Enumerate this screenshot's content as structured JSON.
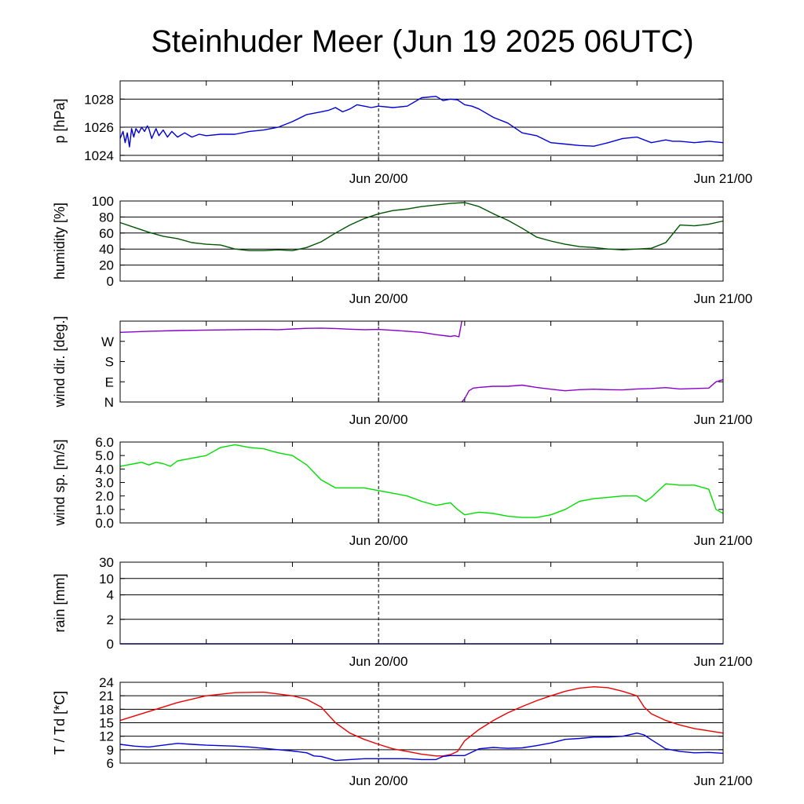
{
  "title": "Steinhuder Meer (Jun 19 2025 06UTC)",
  "chart_data": [
    {
      "type": "line",
      "ylabel": "p [hPa]",
      "ylim": [
        1023.6,
        1029.3
      ],
      "yticks": [
        1024,
        1026,
        1028
      ],
      "ytick_labels": [
        "1024",
        "1026",
        "1028"
      ],
      "grid": true,
      "xlim": [
        0,
        42
      ],
      "xtick_labels": [
        "Jun 20/00",
        "Jun 21/00"
      ],
      "series": [
        {
          "color": "#0000dd",
          "x": [
            0,
            0.2,
            0.35,
            0.5,
            0.65,
            0.8,
            0.95,
            1.1,
            1.3,
            1.5,
            1.7,
            1.9,
            2,
            2.2,
            2.5,
            2.7,
            3,
            3.3,
            3.6,
            4,
            4.5,
            5,
            5.5,
            6,
            7,
            8,
            9,
            10,
            11,
            12,
            13,
            13.5,
            14,
            14.5,
            15,
            15.5,
            16,
            16.5,
            17,
            17.5,
            18,
            19,
            20,
            21,
            22,
            22.5,
            23,
            23.5,
            24,
            24.5,
            25,
            26,
            27,
            28,
            29,
            30,
            31,
            32,
            33,
            34,
            35,
            36,
            37,
            38,
            38.5,
            39,
            40,
            41,
            42
          ],
          "y": [
            1025.2,
            1025.7,
            1024.9,
            1025.6,
            1024.6,
            1025.9,
            1025.3,
            1025.9,
            1025.6,
            1026.0,
            1025.7,
            1026.1,
            1025.9,
            1025.2,
            1025.9,
            1025.4,
            1025.8,
            1025.3,
            1025.7,
            1025.3,
            1025.6,
            1025.3,
            1025.5,
            1025.4,
            1025.5,
            1025.5,
            1025.7,
            1025.8,
            1026.0,
            1026.4,
            1026.9,
            1027.0,
            1027.1,
            1027.2,
            1027.4,
            1027.1,
            1027.3,
            1027.6,
            1027.5,
            1027.4,
            1027.5,
            1027.4,
            1027.5,
            1028.1,
            1028.2,
            1027.9,
            1028.0,
            1027.95,
            1027.6,
            1027.5,
            1027.3,
            1026.7,
            1026.3,
            1025.6,
            1025.4,
            1024.9,
            1024.8,
            1024.7,
            1024.65,
            1024.9,
            1025.2,
            1025.3,
            1024.9,
            1025.1,
            1025.0,
            1025.0,
            1024.9,
            1025.0,
            1024.9
          ]
        }
      ]
    },
    {
      "type": "line",
      "ylabel": "humidity [%]",
      "ylim": [
        0,
        100
      ],
      "yticks": [
        0,
        20,
        40,
        60,
        80,
        100
      ],
      "ytick_labels": [
        "0",
        "20",
        "40",
        "60",
        "80",
        "100"
      ],
      "grid": true,
      "xlim": [
        0,
        42
      ],
      "xtick_labels": [
        "Jun 20/00",
        "Jun 21/00"
      ],
      "series": [
        {
          "color": "#005500",
          "x": [
            0,
            1,
            2,
            3,
            4,
            5,
            6,
            7,
            8,
            9,
            10,
            11,
            12,
            13,
            14,
            15,
            16,
            17,
            18,
            19,
            20,
            21,
            22,
            23,
            24,
            25,
            26,
            27,
            28,
            29,
            30,
            31,
            32,
            33,
            34,
            35,
            36,
            37,
            38,
            39,
            40,
            41,
            42
          ],
          "y": [
            73,
            67,
            61,
            56,
            53,
            48,
            46,
            45,
            40,
            38,
            38,
            39,
            38,
            42,
            49,
            60,
            70,
            78,
            84,
            88,
            90,
            93,
            95,
            97,
            98,
            93,
            84,
            76,
            66,
            55,
            50,
            46,
            43,
            42,
            40,
            39,
            40,
            41,
            48,
            70,
            69,
            71,
            75
          ]
        }
      ]
    },
    {
      "type": "line",
      "ylabel": "wind dir. [deg.]",
      "ylim": [
        0,
        360
      ],
      "yticks": [
        0,
        90,
        180,
        270
      ],
      "ytick_labels": [
        "N",
        "E",
        "S",
        "W"
      ],
      "grid": false,
      "xlim": [
        0,
        42
      ],
      "xtick_labels": [
        "Jun 20/00",
        "Jun 21/00"
      ],
      "series": [
        {
          "color": "#8800cc",
          "x": [
            0,
            2,
            4,
            6,
            8,
            10,
            11,
            12,
            13,
            14,
            15,
            16,
            17,
            18,
            19,
            20,
            21,
            22,
            23,
            23.3,
            23.6,
            23.8
          ],
          "y": [
            310,
            315,
            318,
            320,
            322,
            323,
            322,
            325,
            328,
            329,
            327,
            324,
            322,
            323,
            319,
            315,
            310,
            300,
            292,
            295,
            290,
            360
          ]
        },
        {
          "color": "#8800cc",
          "x": [
            23.8,
            24,
            24.3,
            24.6,
            25,
            26,
            27,
            28,
            29,
            30,
            31,
            32,
            33,
            34,
            35,
            36,
            37,
            38,
            39,
            40,
            41,
            41.5,
            42
          ],
          "y": [
            0,
            15,
            50,
            62,
            65,
            70,
            70,
            75,
            65,
            57,
            50,
            55,
            57,
            55,
            54,
            58,
            60,
            64,
            58,
            60,
            62,
            90,
            100
          ]
        }
      ]
    },
    {
      "type": "line",
      "ylabel": "wind sp. [m/s]",
      "ylim": [
        0,
        6
      ],
      "yticks": [
        0,
        1,
        2,
        3,
        4,
        5,
        6
      ],
      "ytick_labels": [
        "0.0",
        "1.0",
        "2.0",
        "3.0",
        "4.0",
        "5.0",
        "6.0"
      ],
      "grid": false,
      "xlim": [
        0,
        42
      ],
      "xtick_labels": [
        "Jun 20/00",
        "Jun 21/00"
      ],
      "series": [
        {
          "color": "#00dd00",
          "x": [
            0,
            0.5,
            1,
            1.5,
            2,
            2.5,
            3,
            3.5,
            4,
            4.5,
            5,
            6,
            7,
            8,
            9,
            10,
            11,
            12,
            13,
            14,
            15,
            16,
            17,
            18,
            19,
            20,
            21,
            22,
            23,
            23.5,
            24,
            25,
            26,
            27,
            28,
            29,
            30,
            31,
            32,
            33,
            34,
            35,
            36,
            36.3,
            36.6,
            37,
            38,
            39,
            40,
            41,
            41.5,
            42
          ],
          "y": [
            4.2,
            4.3,
            4.4,
            4.5,
            4.3,
            4.5,
            4.4,
            4.2,
            4.6,
            4.7,
            4.8,
            5.0,
            5.6,
            5.8,
            5.6,
            5.5,
            5.2,
            5.0,
            4.3,
            3.2,
            2.6,
            2.6,
            2.6,
            2.4,
            2.2,
            2.0,
            1.6,
            1.3,
            1.5,
            1.0,
            0.6,
            0.8,
            0.7,
            0.5,
            0.4,
            0.4,
            0.6,
            1.0,
            1.6,
            1.8,
            1.9,
            2.0,
            2.0,
            1.8,
            1.6,
            1.9,
            2.9,
            2.8,
            2.8,
            2.5,
            1.0,
            0.7
          ]
        }
      ]
    },
    {
      "type": "line",
      "ylabel": "rain [mm]",
      "ylim": [
        0,
        30
      ],
      "yticks": [
        0,
        2,
        4,
        10,
        30
      ],
      "ytick_labels": [
        "0",
        "2",
        "4",
        "10",
        "30"
      ],
      "grid": true,
      "xlim": [
        0,
        42
      ],
      "xtick_labels": [
        "Jun 20/00",
        "Jun 21/00"
      ],
      "series": [
        {
          "color": "#0000dd",
          "x": [
            0,
            42
          ],
          "y": [
            0,
            0
          ]
        }
      ]
    },
    {
      "type": "line",
      "ylabel": "T / Td [*C]",
      "ylim": [
        6,
        24
      ],
      "yticks": [
        6,
        9,
        12,
        15,
        18,
        21,
        24
      ],
      "ytick_labels": [
        "6",
        "9",
        "12",
        "15",
        "18",
        "21",
        "24"
      ],
      "grid": true,
      "xlim": [
        0,
        42
      ],
      "xtick_labels": [
        "Jun 20/00",
        "Jun 21/00"
      ],
      "series": [
        {
          "name": "T",
          "color": "#ee0000",
          "x": [
            0,
            2,
            4,
            6,
            8,
            10,
            12,
            13,
            14,
            15,
            16,
            17,
            18,
            19,
            20,
            21,
            22,
            22.5,
            23,
            23.5,
            24,
            25,
            26,
            27,
            28,
            29,
            30,
            31,
            32,
            33,
            34,
            35,
            36,
            36.5,
            37,
            38,
            39,
            40,
            41,
            42
          ],
          "y": [
            15.5,
            17.5,
            19.5,
            21.0,
            21.7,
            21.8,
            21.0,
            20.2,
            18.5,
            15.0,
            12.7,
            11.3,
            10.2,
            9.2,
            8.6,
            8.0,
            7.6,
            7.6,
            7.9,
            8.6,
            11.0,
            13.5,
            15.5,
            17.2,
            18.6,
            19.9,
            21.0,
            22.0,
            22.7,
            23.0,
            22.8,
            22.0,
            21.0,
            18.5,
            17.0,
            15.5,
            14.5,
            13.7,
            13.2,
            12.7
          ]
        },
        {
          "name": "Td",
          "color": "#0000dd",
          "x": [
            0,
            1,
            2,
            3,
            4,
            5,
            6,
            7,
            8,
            9,
            10,
            11,
            12,
            13,
            13.5,
            14,
            15,
            16,
            17,
            18,
            19,
            20,
            21,
            21.5,
            22,
            22.5,
            23,
            24,
            25,
            26,
            27,
            28,
            29,
            30,
            31,
            32,
            33,
            34,
            35,
            36,
            36.5,
            37,
            38,
            39,
            40,
            41,
            42
          ],
          "y": [
            10.2,
            9.8,
            9.6,
            10.0,
            10.4,
            10.2,
            10.0,
            9.9,
            9.8,
            9.6,
            9.3,
            9.0,
            8.7,
            8.3,
            7.6,
            7.5,
            6.6,
            6.8,
            7.0,
            7.0,
            7.0,
            7.0,
            6.8,
            6.8,
            6.8,
            7.5,
            7.7,
            7.7,
            9.2,
            9.5,
            9.3,
            9.4,
            9.9,
            10.5,
            11.3,
            11.5,
            11.8,
            11.8,
            12.0,
            12.7,
            12.3,
            11.2,
            9.2,
            8.6,
            8.3,
            8.4,
            8.2
          ]
        }
      ]
    }
  ]
}
